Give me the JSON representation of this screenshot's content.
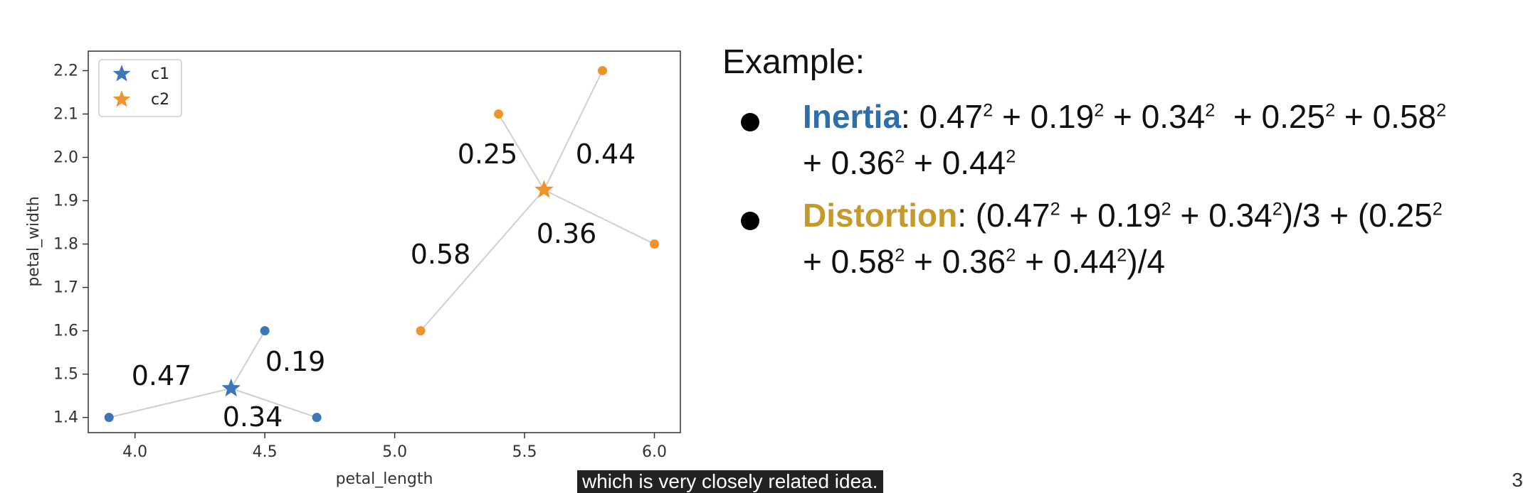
{
  "chart_data": {
    "type": "scatter",
    "xlabel": "petal_length",
    "ylabel": "petal_width",
    "xlim": [
      3.82,
      6.1
    ],
    "ylim": [
      1.365,
      2.245
    ],
    "xticks": [
      "4.0",
      "4.5",
      "5.0",
      "5.5",
      "6.0"
    ],
    "xtick_values": [
      4.0,
      4.5,
      5.0,
      5.5,
      6.0
    ],
    "yticks": [
      "1.4",
      "1.5",
      "1.6",
      "1.7",
      "1.8",
      "1.9",
      "2.0",
      "2.1",
      "2.2"
    ],
    "ytick_values": [
      1.4,
      1.5,
      1.6,
      1.7,
      1.8,
      1.9,
      2.0,
      2.1,
      2.2
    ],
    "grid": false,
    "legend_position": "top-left",
    "legend": [
      {
        "label": "c1",
        "color": "#3b78b5",
        "marker": "star"
      },
      {
        "label": "c2",
        "color": "#f0932b",
        "marker": "star"
      }
    ],
    "clusters": [
      {
        "name": "c1",
        "color": "#3b78b5",
        "centroid": {
          "x": 4.37,
          "y": 1.467
        },
        "points": [
          {
            "x": 3.9,
            "y": 1.4
          },
          {
            "x": 4.5,
            "y": 1.6
          },
          {
            "x": 4.7,
            "y": 1.4
          }
        ]
      },
      {
        "name": "c2",
        "color": "#f0932b",
        "centroid": {
          "x": 5.575,
          "y": 1.925
        },
        "points": [
          {
            "x": 5.4,
            "y": 2.1
          },
          {
            "x": 5.8,
            "y": 2.2
          },
          {
            "x": 6.0,
            "y": 1.8
          },
          {
            "x": 5.1,
            "y": 1.6
          }
        ]
      }
    ],
    "annotations": [
      "0.47",
      "0.19",
      "0.34",
      "0.25",
      "0.44",
      "0.58",
      "0.36"
    ],
    "line_color": "#cfcfcf"
  },
  "example": {
    "heading": "Example:",
    "inertia": {
      "label": "Inertia",
      "line1": {
        "b1": "0.47",
        "b2": "0.19",
        "b3": "0.34",
        "b4": "0.25",
        "b5": "0.58"
      },
      "line2": {
        "b1": "0.36",
        "b2": "0.44"
      }
    },
    "distortion": {
      "label": "Distortion",
      "line1": {
        "b1": "0.47",
        "b2": "0.19",
        "b3": "0.34",
        "div1": "3",
        "b4": "0.25"
      },
      "line2": {
        "b1": "0.58",
        "b2": "0.36",
        "b3": "0.44",
        "div2": "4"
      }
    },
    "exponent": "2"
  },
  "caption": "which is very closely related idea.",
  "page_number": "3"
}
